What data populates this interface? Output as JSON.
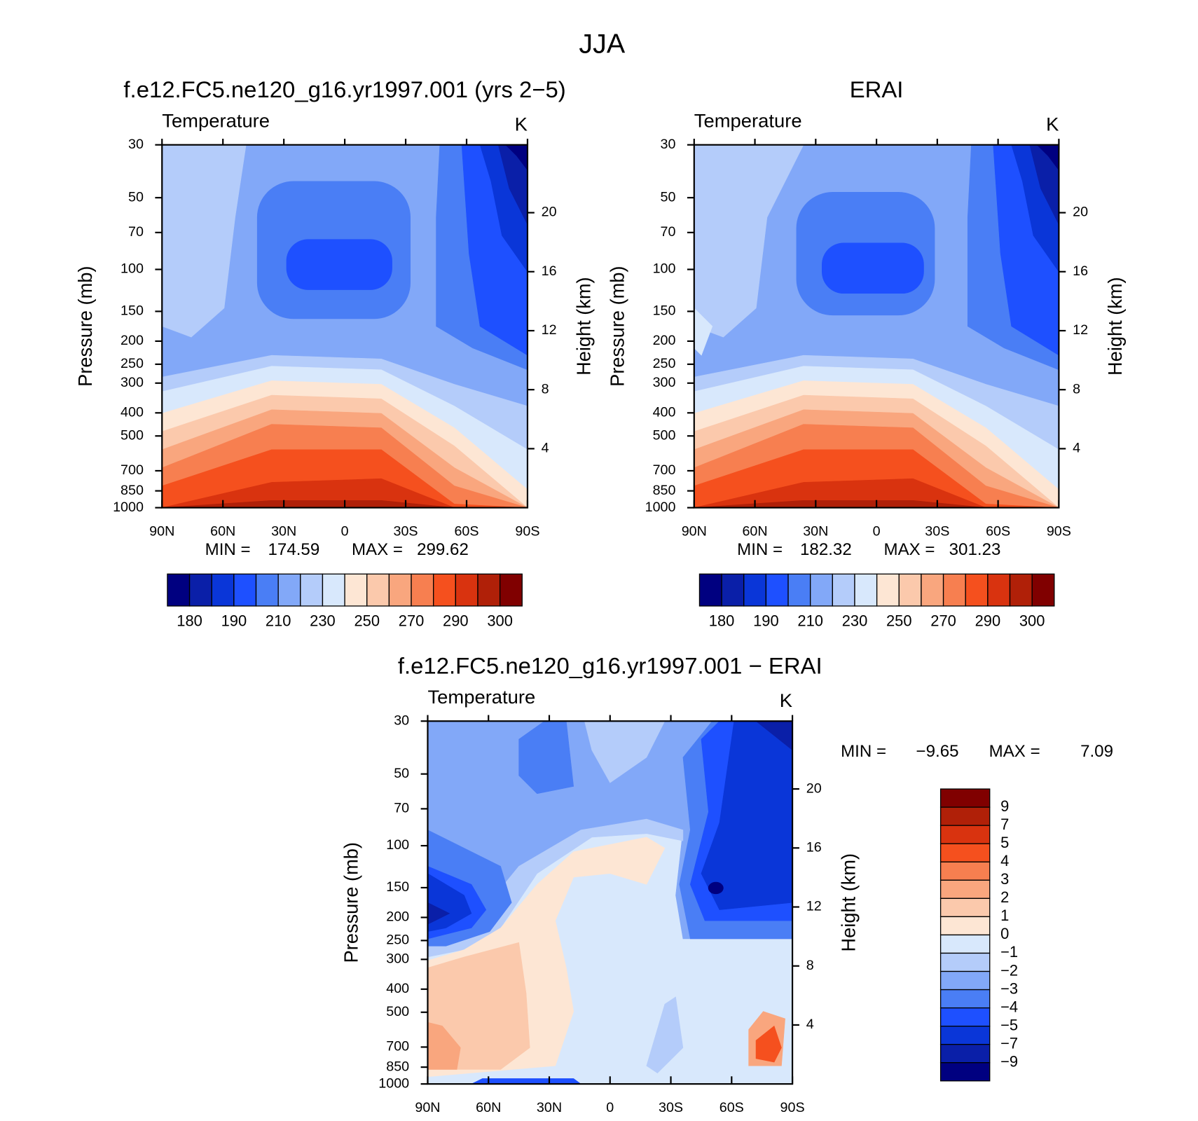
{
  "title": "JJA",
  "chart_data": [
    {
      "type": "contour",
      "title": "f.e12.FC5.ne120_g16.yr1997.001 (yrs 2−5)",
      "subtitle": "Temperature",
      "units": "K",
      "ylabel": "Pressure (mb)",
      "y2label": "Height (km)",
      "xlim": [
        90,
        -90
      ],
      "xticks": [
        {
          "value": 90,
          "label": "90N"
        },
        {
          "value": 60,
          "label": "60N"
        },
        {
          "value": 30,
          "label": "30N"
        },
        0,
        {
          "value": -30,
          "label": "30S"
        },
        {
          "value": -60,
          "label": "60S"
        },
        {
          "value": -90,
          "label": "90S"
        }
      ],
      "yscale": "log",
      "ylim": [
        1000,
        30
      ],
      "yticks": [
        30,
        50,
        70,
        100,
        150,
        200,
        250,
        300,
        400,
        500,
        700,
        850,
        1000
      ],
      "y2lim": [
        0,
        24.6
      ],
      "y2ticks": [
        4,
        8,
        12,
        16,
        20
      ],
      "stats": [
        {
          "label": "MIN =",
          "value": 174.59
        },
        {
          "label": "MAX =",
          "value": 299.62
        }
      ],
      "colorbar": {
        "orientation": "horizontal",
        "colors": [
          "#000080",
          "#0a1fa8",
          "#0a36d8",
          "#1e50ff",
          "#4a7ef5",
          "#82a8f8",
          "#b4ccfa",
          "#d8e8fc",
          "#fde6d4",
          "#fbc9ac",
          "#f9a67e",
          "#f77f50",
          "#f5501e",
          "#d9330f",
          "#b02008",
          "#800000"
        ],
        "ticks": [
          180,
          190,
          210,
          230,
          250,
          270,
          290,
          300
        ]
      }
    },
    {
      "type": "contour",
      "title": "ERAI",
      "subtitle": "Temperature",
      "units": "K",
      "ylabel": "Pressure (mb)",
      "y2label": "Height (km)",
      "xlim": [
        90,
        -90
      ],
      "xticks": [
        {
          "value": 90,
          "label": "90N"
        },
        {
          "value": 60,
          "label": "60N"
        },
        {
          "value": 30,
          "label": "30N"
        },
        0,
        {
          "value": -30,
          "label": "30S"
        },
        {
          "value": -60,
          "label": "60S"
        },
        {
          "value": -90,
          "label": "90S"
        }
      ],
      "yscale": "log",
      "ylim": [
        1000,
        30
      ],
      "yticks": [
        30,
        50,
        70,
        100,
        150,
        200,
        250,
        300,
        400,
        500,
        700,
        850,
        1000
      ],
      "y2lim": [
        0,
        24.6
      ],
      "y2ticks": [
        4,
        8,
        12,
        16,
        20
      ],
      "stats": [
        {
          "label": "MIN =",
          "value": 182.32
        },
        {
          "label": "MAX =",
          "value": 301.23
        }
      ],
      "colorbar": {
        "orientation": "horizontal",
        "colors": [
          "#000080",
          "#0a1fa8",
          "#0a36d8",
          "#1e50ff",
          "#4a7ef5",
          "#82a8f8",
          "#b4ccfa",
          "#d8e8fc",
          "#fde6d4",
          "#fbc9ac",
          "#f9a67e",
          "#f77f50",
          "#f5501e",
          "#d9330f",
          "#b02008",
          "#800000"
        ],
        "ticks": [
          180,
          190,
          210,
          230,
          250,
          270,
          290,
          300
        ]
      }
    },
    {
      "type": "contour",
      "title": "f.e12.FC5.ne120_g16.yr1997.001 − ERAI",
      "subtitle": "Temperature",
      "units": "K",
      "ylabel": "Pressure (mb)",
      "y2label": "Height (km)",
      "xlim": [
        90,
        -90
      ],
      "xticks": [
        {
          "value": 90,
          "label": "90N"
        },
        {
          "value": 60,
          "label": "60N"
        },
        {
          "value": 30,
          "label": "30N"
        },
        0,
        {
          "value": -30,
          "label": "30S"
        },
        {
          "value": -60,
          "label": "60S"
        },
        {
          "value": -90,
          "label": "90S"
        }
      ],
      "yscale": "log",
      "ylim": [
        1000,
        30
      ],
      "yticks": [
        30,
        50,
        70,
        100,
        150,
        200,
        250,
        300,
        400,
        500,
        700,
        850,
        1000
      ],
      "y2lim": [
        0,
        24.6
      ],
      "y2ticks": [
        4,
        8,
        12,
        16,
        20
      ],
      "stats": [
        {
          "label": "MIN =",
          "value": -9.65,
          "value_label": "−9.65"
        },
        {
          "label": "MAX =",
          "value": 7.09
        }
      ],
      "colorbar": {
        "orientation": "vertical",
        "colors": [
          "#800000",
          "#b02008",
          "#d9330f",
          "#f5501e",
          "#f77f50",
          "#f9a67e",
          "#fbc9ac",
          "#fde6d4",
          "#d8e8fc",
          "#b4ccfa",
          "#82a8f8",
          "#4a7ef5",
          "#1e50ff",
          "#0a36d8",
          "#0a1fa8",
          "#000080"
        ],
        "ticks": [
          9,
          7,
          5,
          4,
          3,
          2,
          1,
          0,
          {
            "value": -1,
            "label": "−1"
          },
          {
            "value": -2,
            "label": "−2"
          },
          {
            "value": -3,
            "label": "−3"
          },
          {
            "value": -4,
            "label": "−4"
          },
          {
            "value": -5,
            "label": "−5"
          },
          {
            "value": -7,
            "label": "−7"
          },
          {
            "value": -9,
            "label": "−9"
          }
        ]
      }
    }
  ]
}
